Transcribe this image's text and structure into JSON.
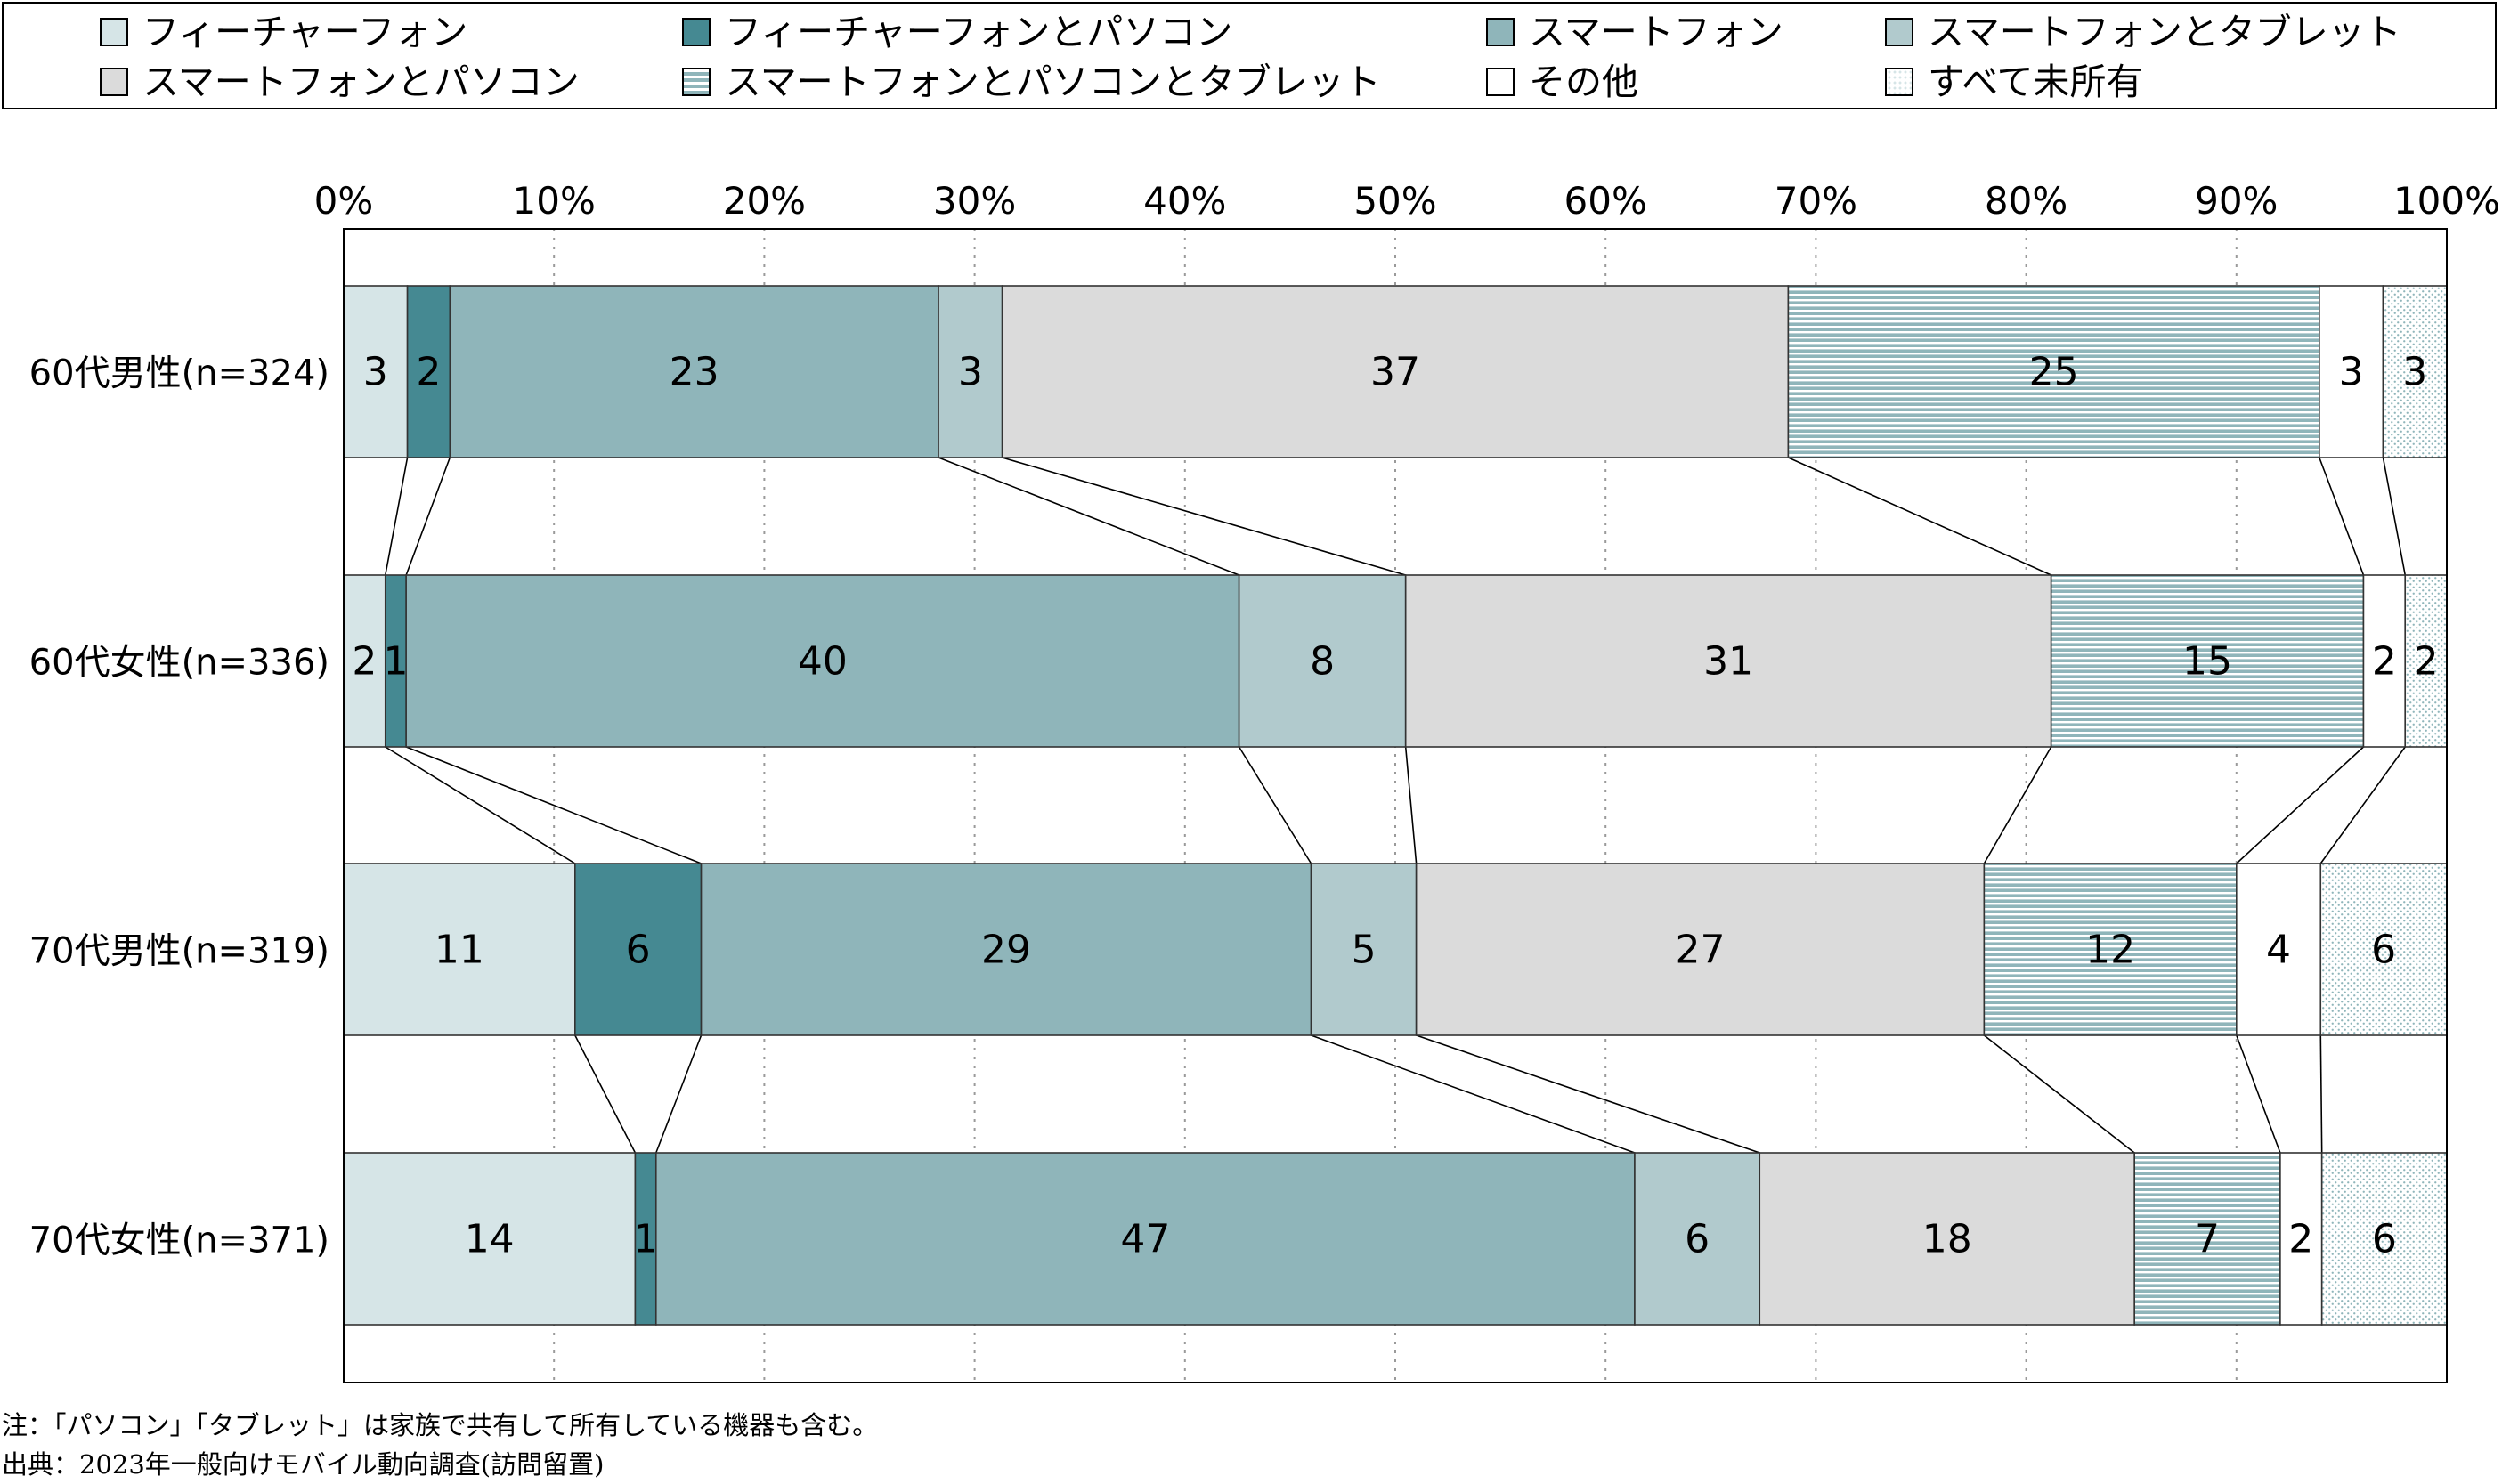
{
  "legend": [
    {
      "label": "フィーチャーフォン",
      "color": "#d6e5e7",
      "pattern": "solid"
    },
    {
      "label": "フィーチャーフォンとパソコン",
      "color": "#458992",
      "pattern": "solid"
    },
    {
      "label": "スマートフォン",
      "color": "#8fb5ba",
      "pattern": "solid"
    },
    {
      "label": "スマートフォンとタブレット",
      "color": "#b1cacd",
      "pattern": "solid"
    },
    {
      "label": "スマートフォンとパソコン",
      "color": "#dbdbdb",
      "pattern": "solid"
    },
    {
      "label": "スマートフォンとパソコンとタブレット",
      "color": "#8fb5ba",
      "pattern": "stripes"
    },
    {
      "label": "その他",
      "color": "#ffffff",
      "pattern": "solid"
    },
    {
      "label": "すべて未所有",
      "color": "#d6e5e7",
      "pattern": "dots"
    }
  ],
  "chart_data": {
    "type": "bar",
    "orientation": "horizontal",
    "stacked": true,
    "categories": [
      "60代男性(n=324)",
      "60代女性(n=336)",
      "70代男性(n=319)",
      "70代女性(n=371)"
    ],
    "series": [
      {
        "name": "フィーチャーフォン",
        "values": [
          3,
          2,
          11,
          14
        ]
      },
      {
        "name": "フィーチャーフォンとパソコン",
        "values": [
          2,
          1,
          6,
          1
        ]
      },
      {
        "name": "スマートフォン",
        "values": [
          23,
          40,
          29,
          47
        ]
      },
      {
        "name": "スマートフォンとタブレット",
        "values": [
          3,
          8,
          5,
          6
        ]
      },
      {
        "name": "スマートフォンとパソコン",
        "values": [
          37,
          31,
          27,
          18
        ]
      },
      {
        "name": "スマートフォンとパソコンとタブレット",
        "values": [
          25,
          15,
          12,
          7
        ]
      },
      {
        "name": "その他",
        "values": [
          3,
          2,
          4,
          2
        ]
      },
      {
        "name": "すべて未所有",
        "values": [
          3,
          2,
          6,
          6
        ]
      }
    ],
    "data_labels": [
      [
        "3",
        "2",
        "23",
        "3",
        "37",
        "25",
        "3",
        "3"
      ],
      [
        "2",
        "1",
        "40",
        "8",
        "31",
        "15",
        "2",
        "2"
      ],
      [
        "11",
        "6",
        "29",
        "5",
        "27",
        "12",
        "4",
        "6"
      ],
      [
        "14",
        "1",
        "47",
        "6",
        "18",
        "7",
        "2",
        "6"
      ]
    ],
    "xlim": [
      0,
      100
    ],
    "x_ticks": [
      "0%",
      "10%",
      "20%",
      "30%",
      "40%",
      "50%",
      "60%",
      "70%",
      "80%",
      "90%",
      "100%"
    ],
    "grid": "vertical dotted",
    "legend_position": "top",
    "connector_lines": true
  },
  "notes": {
    "note": "注：「パソコン」「タブレット」は家族で共有して所有している機器も含む。",
    "source": "出典：2023年一般向けモバイル動向調査(訪問留置)"
  }
}
